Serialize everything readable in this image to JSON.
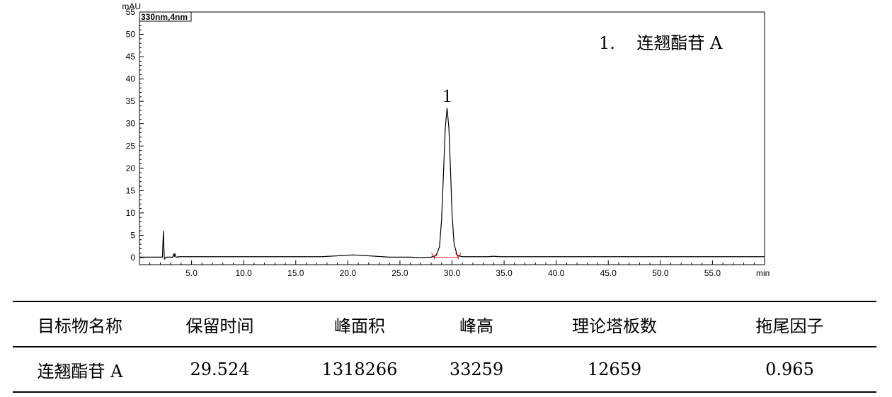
{
  "chart_data": {
    "type": "line",
    "channel_label": "330nm,4nm",
    "y_unit": "mAU",
    "x_unit": "min",
    "xlim": [
      0,
      60
    ],
    "ylim": [
      0,
      55
    ],
    "x_ticks": [
      5.0,
      10.0,
      15.0,
      20.0,
      25.0,
      30.0,
      35.0,
      40.0,
      45.0,
      50.0,
      55.0
    ],
    "x_tick_labels": [
      "5.0",
      "10.0",
      "15.0",
      "20.0",
      "25.0",
      "30.0",
      "35.0",
      "40.0",
      "45.0",
      "50.0",
      "55.0"
    ],
    "y_ticks": [
      0,
      5,
      10,
      15,
      20,
      25,
      30,
      35,
      40,
      45,
      50,
      55
    ],
    "y_tick_labels": [
      "0",
      "5",
      "10",
      "15",
      "20",
      "25",
      "30",
      "35",
      "40",
      "45",
      "50",
      "55"
    ],
    "grid": false,
    "legend_text": "1.    连翘酯苷 A",
    "series": [
      {
        "x": [
          0,
          2.2,
          2.3,
          2.35,
          2.4,
          2.5,
          2.6,
          3.2,
          3.3,
          3.35,
          3.4,
          3.5,
          3.6,
          3.7,
          3.75,
          3.8,
          3.9,
          5.0,
          10.0,
          15.0,
          17.5,
          19.0,
          20.5,
          22.0,
          24.0,
          26.0,
          27.0,
          28.0,
          28.5,
          28.8,
          29.0,
          29.2,
          29.35,
          29.524,
          29.7,
          29.85,
          30.0,
          30.2,
          30.5,
          31.0,
          32.0,
          33.5,
          34.0,
          34.5,
          40.0,
          45.0,
          50.0,
          55.0,
          60.0
        ],
        "y": [
          0.1,
          0.1,
          6.0,
          2.0,
          -0.3,
          -0.1,
          0.1,
          0.1,
          0.9,
          0.2,
          0.9,
          0.1,
          0.1,
          0.2,
          0.1,
          0.2,
          0.2,
          0.2,
          0.2,
          0.2,
          0.2,
          0.4,
          0.6,
          0.4,
          0.1,
          0.1,
          0.0,
          0.1,
          0.5,
          2.5,
          8.5,
          20.0,
          29.0,
          33.5,
          29.0,
          20.0,
          10.0,
          3.0,
          0.5,
          0.2,
          0.2,
          0.2,
          0.3,
          0.2,
          0.2,
          0.2,
          0.2,
          0.2,
          0.2
        ]
      }
    ],
    "peaks": [
      {
        "label": "1",
        "retention_time": 29.524,
        "height": 33.259,
        "start": 28.3,
        "end": 30.6
      }
    ]
  },
  "table": {
    "headers": [
      "目标物名称",
      "保留时间",
      "峰面积",
      "峰高",
      "理论塔板数",
      "拖尾因子"
    ],
    "rows": [
      [
        "连翘酯苷 A",
        "29.524",
        "1318266",
        "33259",
        "12659",
        "0.965"
      ]
    ]
  }
}
